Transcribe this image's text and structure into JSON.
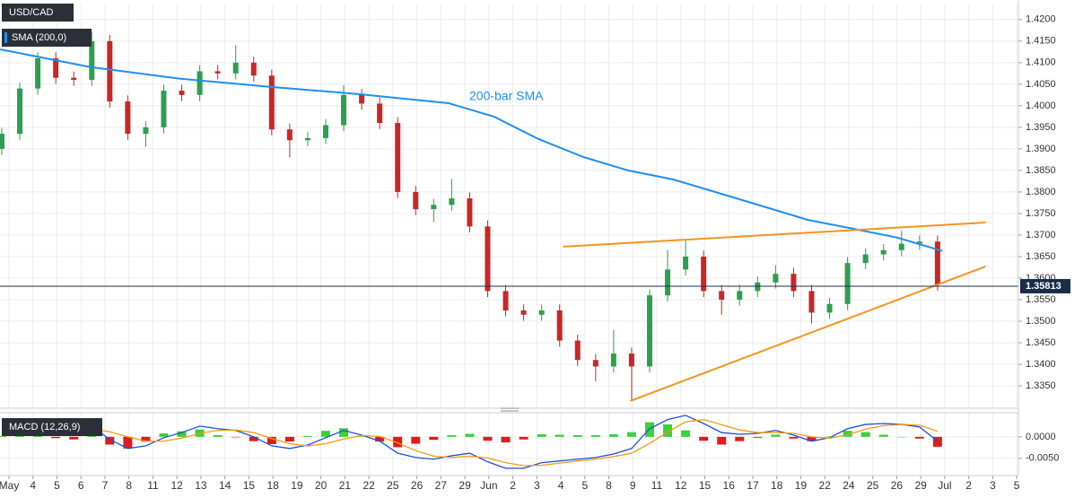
{
  "chart_data": {
    "type": "candlestick",
    "title": "USD/CAD",
    "indicator_label": "SMA (200,0)",
    "annotation": "200-bar SMA",
    "grid": true,
    "xlim": [
      -0.374,
      42.07
    ],
    "xticks": [
      {
        "value": 0,
        "label": "May"
      },
      {
        "value": 1,
        "label": "4"
      },
      {
        "value": 2,
        "label": "5"
      },
      {
        "value": 3,
        "label": "6"
      },
      {
        "value": 4,
        "label": "7"
      },
      {
        "value": 5,
        "label": "8"
      },
      {
        "value": 6,
        "label": "11"
      },
      {
        "value": 7,
        "label": "12"
      },
      {
        "value": 8,
        "label": "13"
      },
      {
        "value": 9,
        "label": "14"
      },
      {
        "value": 10,
        "label": "15"
      },
      {
        "value": 11,
        "label": "18"
      },
      {
        "value": 12,
        "label": "19"
      },
      {
        "value": 13,
        "label": "20"
      },
      {
        "value": 14,
        "label": "21"
      },
      {
        "value": 15,
        "label": "22"
      },
      {
        "value": 16,
        "label": "25"
      },
      {
        "value": 17,
        "label": "26"
      },
      {
        "value": 18,
        "label": "27"
      },
      {
        "value": 19,
        "label": "29"
      },
      {
        "value": 20,
        "label": "Jun"
      },
      {
        "value": 21,
        "label": "2"
      },
      {
        "value": 22,
        "label": "3"
      },
      {
        "value": 23,
        "label": "4"
      },
      {
        "value": 24,
        "label": "5"
      },
      {
        "value": 25,
        "label": "8"
      },
      {
        "value": 26,
        "label": "9"
      },
      {
        "value": 27,
        "label": "11"
      },
      {
        "value": 28,
        "label": "12"
      },
      {
        "value": 29,
        "label": "15"
      },
      {
        "value": 30,
        "label": "16"
      },
      {
        "value": 31,
        "label": "17"
      },
      {
        "value": 32,
        "label": "18"
      },
      {
        "value": 33,
        "label": "19"
      },
      {
        "value": 34,
        "label": "22"
      },
      {
        "value": 35,
        "label": "24"
      },
      {
        "value": 36,
        "label": "25"
      },
      {
        "value": 37,
        "label": "26"
      },
      {
        "value": 38,
        "label": "29"
      },
      {
        "value": 39,
        "label": "Jul"
      },
      {
        "value": 40,
        "label": "2"
      },
      {
        "value": 41,
        "label": "3"
      },
      {
        "value": 42,
        "label": "5"
      }
    ],
    "ylim": [
      1.3298,
      1.4235
    ],
    "yticks": [
      {
        "value": 1.42,
        "label": "1.4200"
      },
      {
        "value": 1.415,
        "label": "1.4150"
      },
      {
        "value": 1.41,
        "label": "1.4100"
      },
      {
        "value": 1.405,
        "label": "1.4050"
      },
      {
        "value": 1.4,
        "label": "1.4000"
      },
      {
        "value": 1.395,
        "label": "1.3950"
      },
      {
        "value": 1.39,
        "label": "1.3900"
      },
      {
        "value": 1.385,
        "label": "1.3850"
      },
      {
        "value": 1.38,
        "label": "1.3800"
      },
      {
        "value": 1.375,
        "label": "1.3750"
      },
      {
        "value": 1.37,
        "label": "1.3700"
      },
      {
        "value": 1.365,
        "label": "1.3650"
      },
      {
        "value": 1.36,
        "label": "1.3600"
      },
      {
        "value": 1.355,
        "label": "1.3550"
      },
      {
        "value": 1.35,
        "label": "1.3500"
      },
      {
        "value": 1.345,
        "label": "1.3450"
      },
      {
        "value": 1.34,
        "label": "1.3400"
      },
      {
        "value": 1.335,
        "label": "1.3350"
      }
    ],
    "up_color": "#2e9e4f",
    "down_color": "#c62828",
    "x": [
      -0.3,
      0.45,
      1.2,
      1.95,
      2.7,
      3.45,
      4.2,
      4.95,
      5.7,
      6.45,
      7.2,
      7.95,
      8.7,
      9.45,
      10.2,
      10.95,
      11.7,
      12.45,
      13.2,
      13.95,
      14.7,
      15.45,
      16.2,
      16.95,
      17.7,
      18.45,
      19.2,
      19.95,
      20.7,
      21.45,
      22.2,
      22.95,
      23.7,
      24.45,
      25.2,
      25.95,
      26.7,
      27.45,
      28.2,
      28.95,
      29.7,
      30.45,
      31.2,
      31.95,
      32.7,
      33.45,
      34.2,
      34.95,
      35.7,
      36.45,
      37.2,
      37.95,
      38.7
    ],
    "open": [
      1.39,
      1.3935,
      1.404,
      1.411,
      1.4065,
      1.406,
      1.415,
      1.401,
      1.3935,
      1.395,
      1.4035,
      1.4025,
      1.408,
      1.4075,
      1.41,
      1.407,
      1.3945,
      1.392,
      1.3925,
      1.3955,
      1.4025,
      1.4005,
      1.396,
      1.38,
      1.376,
      1.377,
      1.3785,
      1.372,
      1.357,
      1.3525,
      1.3515,
      1.3525,
      1.3455,
      1.341,
      1.3395,
      1.3425,
      1.3395,
      1.356,
      1.362,
      1.365,
      1.357,
      1.355,
      1.357,
      1.359,
      1.361,
      1.357,
      1.352,
      1.354,
      1.3635,
      1.3655,
      1.3665,
      1.368,
      1.3685
    ],
    "high": [
      1.3949,
      1.4054,
      1.4124,
      1.4124,
      1.4079,
      1.4172,
      1.4164,
      1.4024,
      1.3964,
      1.4049,
      1.4049,
      1.4094,
      1.4094,
      1.414,
      1.4114,
      1.4084,
      1.3959,
      1.3939,
      1.3969,
      1.4048,
      1.4039,
      1.4019,
      1.3974,
      1.3814,
      1.3784,
      1.383,
      1.3799,
      1.3734,
      1.3584,
      1.3539,
      1.3539,
      1.3539,
      1.3469,
      1.3424,
      1.348,
      1.3439,
      1.3574,
      1.3665,
      1.369,
      1.3664,
      1.3584,
      1.3584,
      1.3604,
      1.363,
      1.3624,
      1.3584,
      1.3554,
      1.3649,
      1.3669,
      1.3679,
      1.371,
      1.3699,
      1.3699
    ],
    "low": [
      1.3886,
      1.3921,
      1.4026,
      1.4051,
      1.4046,
      1.4046,
      1.3996,
      1.3921,
      1.3905,
      1.3936,
      1.4011,
      1.4011,
      1.4061,
      1.4061,
      1.4056,
      1.3931,
      1.388,
      1.3906,
      1.3911,
      1.3941,
      1.3991,
      1.3946,
      1.3786,
      1.3746,
      1.373,
      1.3756,
      1.3706,
      1.3556,
      1.3511,
      1.3501,
      1.3501,
      1.3441,
      1.3396,
      1.336,
      1.3381,
      1.3318,
      1.3381,
      1.3546,
      1.3606,
      1.3556,
      1.3515,
      1.3536,
      1.3556,
      1.3576,
      1.3556,
      1.3495,
      1.3506,
      1.3526,
      1.3621,
      1.3641,
      1.3651,
      1.3666,
      1.3571
    ],
    "close": [
      1.3935,
      1.404,
      1.411,
      1.4065,
      1.406,
      1.415,
      1.401,
      1.3935,
      1.395,
      1.4035,
      1.4025,
      1.408,
      1.4075,
      1.41,
      1.407,
      1.3945,
      1.392,
      1.3925,
      1.3955,
      1.4025,
      1.4005,
      1.396,
      1.38,
      1.376,
      1.377,
      1.3785,
      1.372,
      1.357,
      1.3525,
      1.3515,
      1.3525,
      1.3455,
      1.341,
      1.3395,
      1.3425,
      1.3395,
      1.356,
      1.362,
      1.365,
      1.357,
      1.355,
      1.357,
      1.359,
      1.361,
      1.357,
      1.352,
      1.354,
      1.3635,
      1.3655,
      1.3665,
      1.368,
      1.3685,
      1.3585
    ],
    "sma": {
      "color": "#1e8ff0",
      "x": [
        -0.37,
        3.37,
        7.1,
        10.85,
        14.58,
        18.32,
        20.2,
        22.06,
        23.94,
        25.8,
        27.68,
        29.55,
        31.4,
        33.3,
        35.15,
        37.02,
        38.9
      ],
      "values": [
        1.4131,
        1.409,
        1.4063,
        1.4044,
        1.4027,
        1.4006,
        1.3975,
        1.3923,
        1.3881,
        1.385,
        1.3829,
        1.3798,
        1.3767,
        1.3735,
        1.3715,
        1.3694,
        1.3663
      ]
    },
    "trendlines": {
      "color": "#f7931e",
      "lines": [
        {
          "x": [
            23.1,
            40.7
          ],
          "values": [
            1.3673,
            1.3729
          ]
        },
        {
          "x": [
            25.9,
            40.7
          ],
          "values": [
            1.3315,
            1.3627
          ]
        }
      ]
    },
    "last_price": 1.35813,
    "last_price_color": "#1b2c4b",
    "macd": {
      "title": "MACD (12,26,9)",
      "ylim": [
        -0.009,
        0.0056
      ],
      "yticks": [
        {
          "value": 0,
          "label": "0.0000"
        },
        {
          "value": -0.005,
          "label": "-0.0050"
        }
      ],
      "macd": {
        "color": "#1f4fd6",
        "values": [
          0.0004,
          0.0019,
          0.0025,
          0.0015,
          0.001,
          0.0025,
          -0.0006,
          -0.0027,
          -0.0021,
          -0.0002,
          0.001,
          0.0025,
          0.0019,
          0.0015,
          0,
          -0.0021,
          -0.0027,
          -0.0019,
          -0.0002,
          0.0015,
          0.0004,
          -0.001,
          -0.0038,
          -0.0048,
          -0.0052,
          -0.0044,
          -0.0038,
          -0.0058,
          -0.0073,
          -0.0073,
          -0.006,
          -0.0056,
          -0.0052,
          -0.0048,
          -0.004,
          -0.0027,
          0.0019,
          0.004,
          0.005,
          0.0031,
          0.001,
          0.0006,
          0.0008,
          0.0015,
          0.0004,
          -0.001,
          -0.0002,
          0.0019,
          0.0029,
          0.0031,
          0.0029,
          0.0023,
          -0.001
        ]
      },
      "signal": {
        "color": "#f39c12",
        "values": [
          0.0002,
          0.0008,
          0.0015,
          0.0018,
          0.0016,
          0.0018,
          0.0012,
          0,
          -0.001,
          -0.001,
          -0.0003,
          0.0008,
          0.0015,
          0.0016,
          0.001,
          -0.0004,
          -0.0016,
          -0.0021,
          -0.0016,
          -0.0005,
          0.0003,
          0.0001,
          -0.0014,
          -0.0032,
          -0.0045,
          -0.0048,
          -0.0045,
          -0.0049,
          -0.006,
          -0.0067,
          -0.0066,
          -0.0061,
          -0.0056,
          -0.0052,
          -0.0046,
          -0.0038,
          -0.0015,
          0.0011,
          0.0035,
          0.004,
          0.0028,
          0.0016,
          0.001,
          0.001,
          0.0008,
          0,
          -0.0003,
          0.0005,
          0.0018,
          0.0026,
          0.0029,
          0.0027,
          0.0013
        ]
      },
      "histogram": {
        "up_color": "#3ad13a",
        "down_color": "#e01b1b",
        "values": [
          0.0002,
          0.0011,
          0.001,
          -0.0003,
          -0.0006,
          0.0007,
          -0.0018,
          -0.0027,
          -0.0011,
          0.0008,
          0.0013,
          0.0017,
          0.0004,
          -0.0001,
          -0.001,
          -0.0017,
          -0.0011,
          0.0002,
          0.0014,
          0.002,
          0.0001,
          -0.0011,
          -0.0024,
          -0.0016,
          -0.0007,
          0.0004,
          0.0007,
          -0.0009,
          -0.0013,
          -0.0006,
          0.0006,
          0.0005,
          0.0004,
          0.0004,
          0.0006,
          0.0011,
          0.0034,
          0.0029,
          0.0015,
          -0.0009,
          -0.0018,
          -0.001,
          -0.0002,
          0.0005,
          -0.0004,
          -0.001,
          0.0001,
          0.0014,
          0.0011,
          0.0005,
          0,
          -0.0004,
          -0.0023
        ]
      }
    }
  }
}
